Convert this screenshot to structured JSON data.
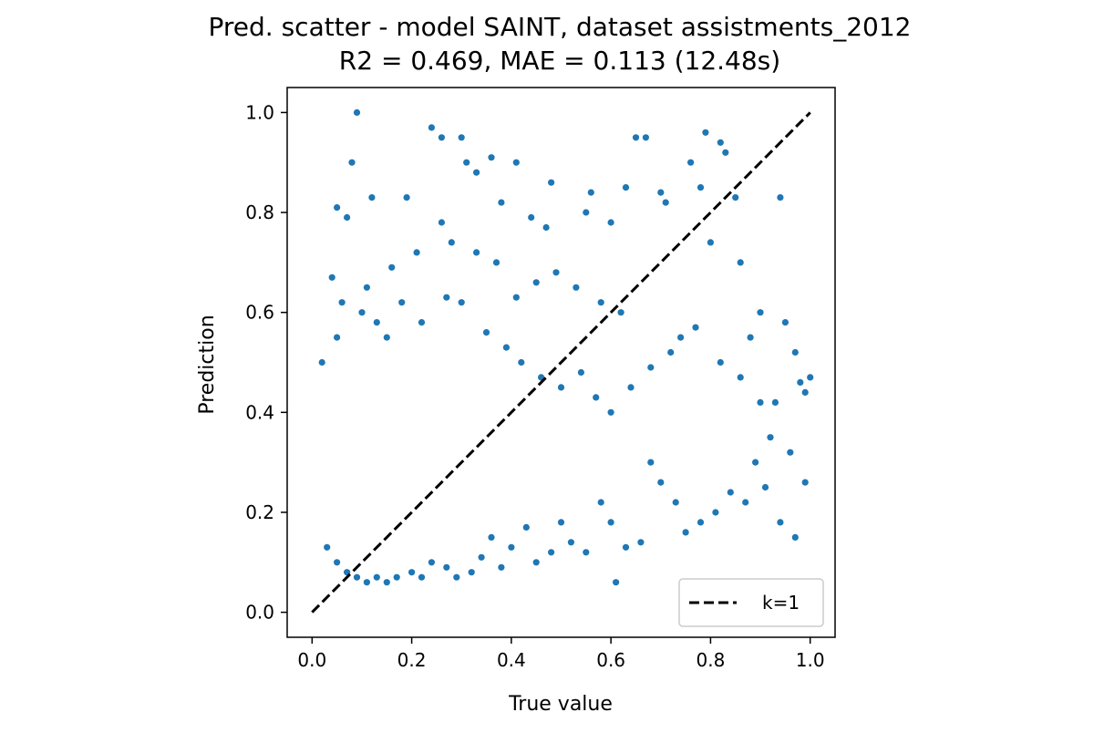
{
  "chart_data": {
    "type": "scatter",
    "title": "Pred. scatter - model SAINT, dataset assistments_2012",
    "subtitle": "R2 = 0.469, MAE = 0.113 (12.48s)",
    "xlabel": "True value",
    "ylabel": "Prediction",
    "xlim": [
      -0.05,
      1.05
    ],
    "ylim": [
      -0.05,
      1.05
    ],
    "xticks": [
      "0.0",
      "0.2",
      "0.4",
      "0.6",
      "0.8",
      "1.0"
    ],
    "yticks": [
      "0.0",
      "0.2",
      "0.4",
      "0.6",
      "0.8",
      "1.0"
    ],
    "grid": false,
    "legend": {
      "placement": "bottom-right",
      "entries": [
        "k=1"
      ]
    },
    "reference_line": {
      "name": "k=1",
      "style": "dashed",
      "color": "#000000",
      "x": [
        0,
        1
      ],
      "y": [
        0,
        1
      ]
    },
    "point_color": "#1f77b4",
    "series": [
      {
        "points": [
          [
            0.09,
            1.0
          ],
          [
            0.08,
            0.9
          ],
          [
            0.24,
            0.97
          ],
          [
            0.26,
            0.95
          ],
          [
            0.3,
            0.95
          ],
          [
            0.36,
            0.91
          ],
          [
            0.41,
            0.9
          ],
          [
            0.65,
            0.95
          ],
          [
            0.67,
            0.95
          ],
          [
            0.79,
            0.96
          ],
          [
            0.82,
            0.94
          ],
          [
            0.83,
            0.92
          ],
          [
            0.85,
            0.83
          ],
          [
            0.94,
            0.83
          ],
          [
            0.05,
            0.81
          ],
          [
            0.07,
            0.79
          ],
          [
            0.12,
            0.83
          ],
          [
            0.19,
            0.83
          ],
          [
            0.48,
            0.86
          ],
          [
            0.56,
            0.84
          ],
          [
            0.61,
            0.06
          ],
          [
            0.04,
            0.67
          ],
          [
            0.13,
            0.58
          ],
          [
            0.26,
            0.78
          ],
          [
            0.31,
            0.9
          ],
          [
            0.33,
            0.88
          ],
          [
            0.38,
            0.82
          ],
          [
            0.44,
            0.79
          ],
          [
            0.47,
            0.77
          ],
          [
            0.55,
            0.8
          ],
          [
            0.6,
            0.78
          ],
          [
            0.63,
            0.85
          ],
          [
            0.7,
            0.84
          ],
          [
            0.71,
            0.82
          ],
          [
            0.76,
            0.9
          ],
          [
            0.78,
            0.85
          ],
          [
            0.8,
            0.74
          ],
          [
            0.86,
            0.7
          ],
          [
            0.88,
            0.55
          ],
          [
            0.9,
            0.6
          ],
          [
            0.93,
            0.42
          ],
          [
            0.95,
            0.58
          ],
          [
            0.97,
            0.52
          ],
          [
            0.98,
            0.46
          ],
          [
            0.99,
            0.44
          ],
          [
            1.0,
            0.47
          ],
          [
            0.96,
            0.32
          ],
          [
            0.99,
            0.26
          ],
          [
            0.97,
            0.15
          ],
          [
            0.94,
            0.18
          ],
          [
            0.91,
            0.25
          ],
          [
            0.89,
            0.3
          ],
          [
            0.87,
            0.22
          ],
          [
            0.84,
            0.24
          ],
          [
            0.81,
            0.2
          ],
          [
            0.78,
            0.18
          ],
          [
            0.75,
            0.16
          ],
          [
            0.73,
            0.22
          ],
          [
            0.7,
            0.26
          ],
          [
            0.68,
            0.3
          ],
          [
            0.66,
            0.14
          ],
          [
            0.63,
            0.13
          ],
          [
            0.6,
            0.18
          ],
          [
            0.58,
            0.22
          ],
          [
            0.55,
            0.12
          ],
          [
            0.52,
            0.14
          ],
          [
            0.5,
            0.18
          ],
          [
            0.48,
            0.12
          ],
          [
            0.45,
            0.1
          ],
          [
            0.43,
            0.17
          ],
          [
            0.4,
            0.13
          ],
          [
            0.38,
            0.09
          ],
          [
            0.36,
            0.15
          ],
          [
            0.34,
            0.11
          ],
          [
            0.32,
            0.08
          ],
          [
            0.29,
            0.07
          ],
          [
            0.27,
            0.09
          ],
          [
            0.24,
            0.1
          ],
          [
            0.22,
            0.07
          ],
          [
            0.2,
            0.08
          ],
          [
            0.17,
            0.07
          ],
          [
            0.15,
            0.06
          ],
          [
            0.13,
            0.07
          ],
          [
            0.11,
            0.06
          ],
          [
            0.09,
            0.07
          ],
          [
            0.07,
            0.08
          ],
          [
            0.05,
            0.1
          ],
          [
            0.03,
            0.13
          ],
          [
            0.02,
            0.5
          ],
          [
            0.05,
            0.55
          ],
          [
            0.1,
            0.6
          ],
          [
            0.15,
            0.55
          ],
          [
            0.18,
            0.62
          ],
          [
            0.22,
            0.58
          ],
          [
            0.27,
            0.63
          ],
          [
            0.3,
            0.62
          ],
          [
            0.35,
            0.56
          ],
          [
            0.39,
            0.53
          ],
          [
            0.42,
            0.5
          ],
          [
            0.46,
            0.47
          ],
          [
            0.5,
            0.45
          ],
          [
            0.54,
            0.48
          ],
          [
            0.57,
            0.43
          ],
          [
            0.6,
            0.4
          ],
          [
            0.64,
            0.45
          ],
          [
            0.68,
            0.49
          ],
          [
            0.72,
            0.52
          ],
          [
            0.74,
            0.55
          ],
          [
            0.77,
            0.57
          ],
          [
            0.82,
            0.5
          ],
          [
            0.86,
            0.47
          ],
          [
            0.9,
            0.42
          ],
          [
            0.92,
            0.35
          ],
          [
            0.62,
            0.6
          ],
          [
            0.58,
            0.62
          ],
          [
            0.53,
            0.65
          ],
          [
            0.49,
            0.68
          ],
          [
            0.45,
            0.66
          ],
          [
            0.41,
            0.63
          ],
          [
            0.37,
            0.7
          ],
          [
            0.33,
            0.72
          ],
          [
            0.28,
            0.74
          ],
          [
            0.21,
            0.72
          ],
          [
            0.16,
            0.69
          ],
          [
            0.11,
            0.65
          ],
          [
            0.06,
            0.62
          ]
        ]
      }
    ]
  }
}
